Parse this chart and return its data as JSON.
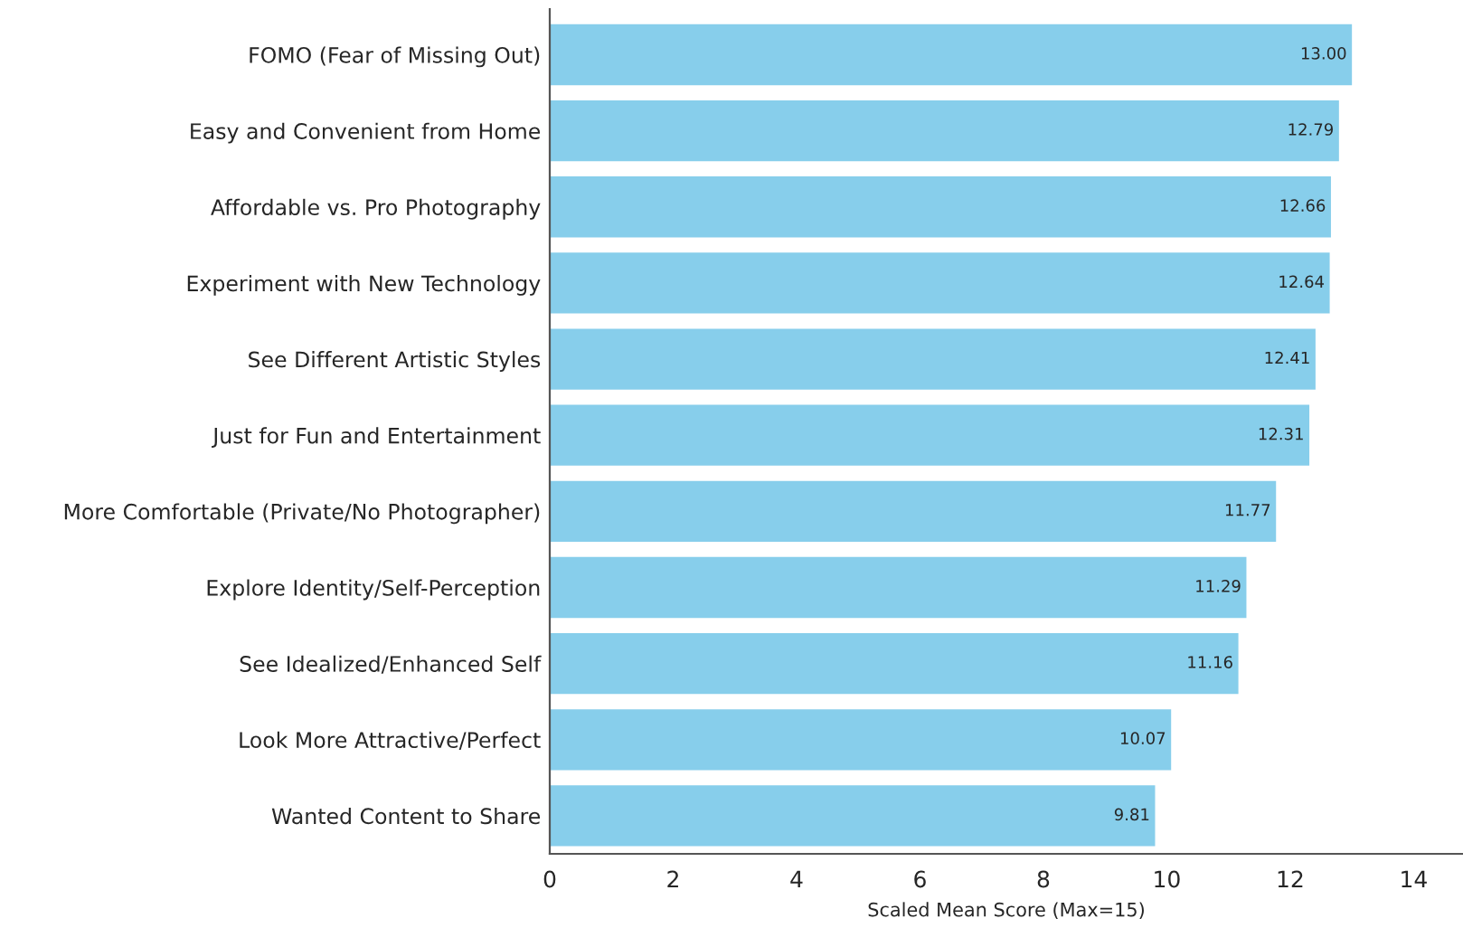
{
  "chart_data": {
    "type": "bar",
    "orientation": "horizontal",
    "xlabel": "Scaled Mean Score (Max=15)",
    "categories": [
      "FOMO (Fear of Missing Out)",
      "Easy and Convenient from Home",
      "Affordable vs. Pro Photography",
      "Experiment with New Technology",
      "See Different Artistic Styles",
      "Just for Fun and Entertainment",
      "More Comfortable (Private/No Photographer)",
      "Explore Identity/Self-Perception",
      "See Idealized/Enhanced Self",
      "Look More Attractive/Perfect",
      "Wanted Content to Share"
    ],
    "values": [
      13.0,
      12.79,
      12.66,
      12.64,
      12.41,
      12.31,
      11.77,
      11.29,
      11.16,
      10.07,
      9.81
    ],
    "value_labels": [
      "13.00",
      "12.79",
      "12.66",
      "12.64",
      "12.41",
      "12.31",
      "11.77",
      "11.29",
      "11.16",
      "10.07",
      "9.81"
    ],
    "color": "#87ceeb",
    "xlim": [
      0,
      14.8
    ],
    "xticks": [
      0,
      2,
      4,
      6,
      8,
      10,
      12,
      14
    ],
    "grid": false,
    "legend": false
  }
}
